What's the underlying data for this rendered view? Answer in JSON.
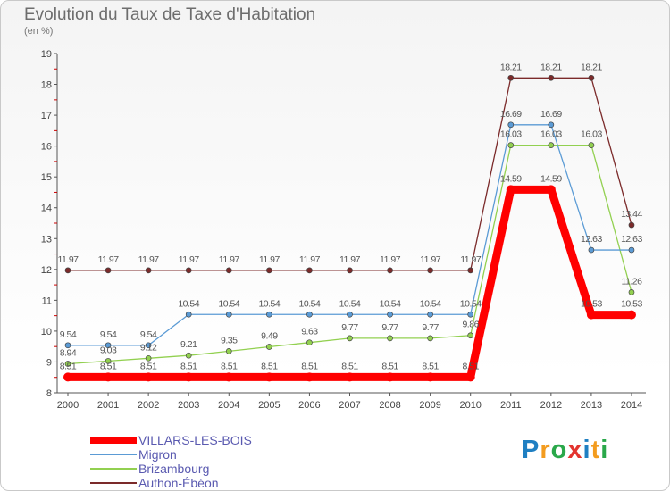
{
  "header": {
    "title": "Evolution du Taux de Taxe d'Habitation",
    "subtitle": "(en %)"
  },
  "chart_data": {
    "type": "line",
    "title": "Evolution du Taux de Taxe d'Habitation",
    "subtitle": "(en %)",
    "xlabel": "",
    "ylabel": "",
    "x": [
      "2000",
      "2001",
      "2002",
      "2003",
      "2004",
      "2005",
      "2006",
      "2007",
      "2008",
      "2009",
      "2010",
      "2011",
      "2012",
      "2013",
      "2014"
    ],
    "y_ticks": [
      8,
      9,
      10,
      11,
      12,
      13,
      14,
      15,
      16,
      17,
      18,
      19
    ],
    "ylim": [
      8,
      19
    ],
    "grid": false,
    "legend_position": "bottom-left",
    "series": [
      {
        "name": "VILLARS-LES-BOIS",
        "color": "#ff0000",
        "values": [
          8.51,
          8.51,
          8.51,
          8.51,
          8.51,
          8.51,
          8.51,
          8.51,
          8.51,
          8.51,
          8.51,
          14.59,
          14.59,
          10.53,
          10.53
        ],
        "labels": [
          "8.51",
          "8.51",
          "8.51",
          "8.51",
          "8.51",
          "8.51",
          "8.51",
          "8.51",
          "8.51",
          "8.51",
          "8.51",
          "14.59",
          "14.59",
          "10.53",
          "10.53"
        ]
      },
      {
        "name": "Migron",
        "color": "#5b9bd5",
        "values": [
          9.54,
          9.54,
          9.54,
          10.54,
          10.54,
          10.54,
          10.54,
          10.54,
          10.54,
          10.54,
          10.54,
          16.69,
          16.69,
          12.63,
          12.63
        ],
        "labels": [
          "9.54",
          "9.54",
          "9.54",
          "10.54",
          "10.54",
          "10.54",
          "10.54",
          "10.54",
          "10.54",
          "10.54",
          "10.54",
          "16.69",
          "16.69",
          "12.63",
          "12.63"
        ]
      },
      {
        "name": "Brizambourg",
        "color": "#92d050",
        "values": [
          8.94,
          9.03,
          9.12,
          9.21,
          9.35,
          9.49,
          9.63,
          9.77,
          9.77,
          9.77,
          9.86,
          16.03,
          16.03,
          16.03,
          11.26
        ],
        "labels": [
          "8.94",
          "9.03",
          "9.12",
          "9.21",
          "9.35",
          "9.49",
          "9.63",
          "9.77",
          "9.77",
          "9.77",
          "9.86",
          "16.03",
          "16.03",
          "16.03",
          "11.26"
        ]
      },
      {
        "name": "Authon-Ébéon",
        "color": "#7b2a2a",
        "values": [
          11.97,
          11.97,
          11.97,
          11.97,
          11.97,
          11.97,
          11.97,
          11.97,
          11.97,
          11.97,
          11.97,
          18.21,
          18.21,
          18.21,
          13.44
        ],
        "labels": [
          "11.97",
          "11.97",
          "11.97",
          "11.97",
          "11.97",
          "11.97",
          "11.97",
          "11.97",
          "11.97",
          "11.97",
          "11.97",
          "18.21",
          "18.21",
          "18.21",
          "13.44"
        ]
      }
    ]
  },
  "legend": {
    "items": [
      {
        "label": "VILLARS-LES-BOIS",
        "color": "#ff0000"
      },
      {
        "label": "Migron",
        "color": "#5b9bd5"
      },
      {
        "label": "Brizambourg",
        "color": "#92d050"
      },
      {
        "label": "Authon-Ébéon",
        "color": "#7b2a2a"
      }
    ]
  },
  "logo": {
    "text": "Proxiti",
    "letters": [
      "P",
      "r",
      "o",
      "x",
      "i",
      "t",
      "i"
    ],
    "letter_colors": [
      "#1f7fc2",
      "#f39c1f",
      "#2aa84a",
      "#e3342f",
      "#1f7fc2",
      "#f39c1f",
      "#2aa84a"
    ]
  }
}
